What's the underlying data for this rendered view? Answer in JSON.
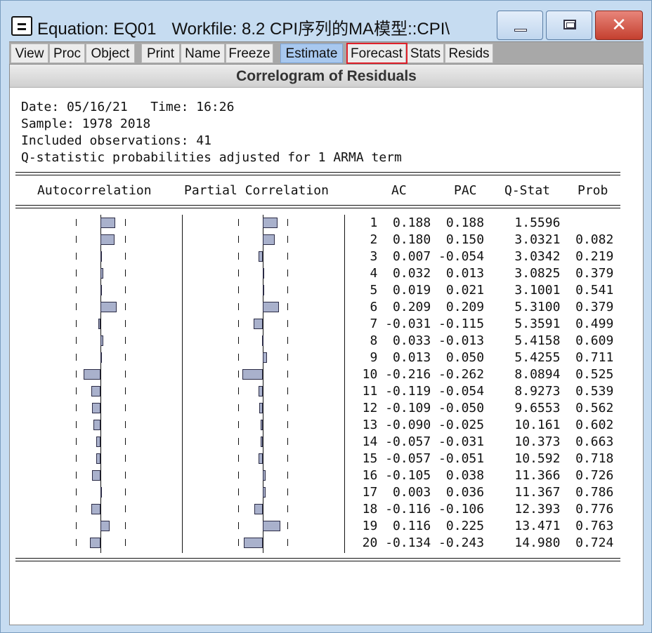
{
  "window": {
    "title_equation": "Equation: EQ01",
    "title_workfile": "Workfile: 8.2 CPI序列的MA模型::CPI\\",
    "controls": {
      "minimize": "minimize-icon",
      "maximize": "maximize-icon",
      "close": "close-icon"
    }
  },
  "toolbar": {
    "buttons": [
      "View",
      "Proc",
      "Object",
      "Print",
      "Name",
      "Freeze",
      "Estimate",
      "Forecast",
      "Stats",
      "Resids"
    ],
    "active_button": "Estimate",
    "highlighted_button": "Forecast",
    "highlight_color": "#e0202a"
  },
  "view": {
    "title": "Correlogram of Residuals",
    "date_line": "Date: 05/16/21   Time: 16:26",
    "sample_line": "Sample: 1978 2018",
    "obs_line": "Included observations: 41",
    "note_line": "Q-statistic probabilities adjusted for 1 ARMA term",
    "headers": {
      "autocorrelation": "Autocorrelation",
      "partial": "Partial Correlation",
      "ac": "AC",
      "pac": "PAC",
      "qstat": "Q-Stat",
      "prob": "Prob"
    },
    "bar_color": "#a9b1cc",
    "rows": [
      {
        "lag": "1",
        "ac": "0.188",
        "pac": "0.188",
        "q": "1.5596",
        "prob": ""
      },
      {
        "lag": "2",
        "ac": "0.180",
        "pac": "0.150",
        "q": "3.0321",
        "prob": "0.082"
      },
      {
        "lag": "3",
        "ac": "0.007",
        "pac": "-0.054",
        "q": "3.0342",
        "prob": "0.219"
      },
      {
        "lag": "4",
        "ac": "0.032",
        "pac": "0.013",
        "q": "3.0825",
        "prob": "0.379"
      },
      {
        "lag": "5",
        "ac": "0.019",
        "pac": "0.021",
        "q": "3.1001",
        "prob": "0.541"
      },
      {
        "lag": "6",
        "ac": "0.209",
        "pac": "0.209",
        "q": "5.3100",
        "prob": "0.379"
      },
      {
        "lag": "7",
        "ac": "-0.031",
        "pac": "-0.115",
        "q": "5.3591",
        "prob": "0.499"
      },
      {
        "lag": "8",
        "ac": "0.033",
        "pac": "-0.013",
        "q": "5.4158",
        "prob": "0.609"
      },
      {
        "lag": "9",
        "ac": "0.013",
        "pac": "0.050",
        "q": "5.4255",
        "prob": "0.711"
      },
      {
        "lag": "10",
        "ac": "-0.216",
        "pac": "-0.262",
        "q": "8.0894",
        "prob": "0.525"
      },
      {
        "lag": "11",
        "ac": "-0.119",
        "pac": "-0.054",
        "q": "8.9273",
        "prob": "0.539"
      },
      {
        "lag": "12",
        "ac": "-0.109",
        "pac": "-0.050",
        "q": "9.6553",
        "prob": "0.562"
      },
      {
        "lag": "13",
        "ac": "-0.090",
        "pac": "-0.025",
        "q": "10.161",
        "prob": "0.602"
      },
      {
        "lag": "14",
        "ac": "-0.057",
        "pac": "-0.031",
        "q": "10.373",
        "prob": "0.663"
      },
      {
        "lag": "15",
        "ac": "-0.057",
        "pac": "-0.051",
        "q": "10.592",
        "prob": "0.718"
      },
      {
        "lag": "16",
        "ac": "-0.105",
        "pac": "0.038",
        "q": "11.366",
        "prob": "0.726"
      },
      {
        "lag": "17",
        "ac": "0.003",
        "pac": "0.036",
        "q": "11.367",
        "prob": "0.786"
      },
      {
        "lag": "18",
        "ac": "-0.116",
        "pac": "-0.106",
        "q": "12.393",
        "prob": "0.776"
      },
      {
        "lag": "19",
        "ac": "0.116",
        "pac": "0.225",
        "q": "13.471",
        "prob": "0.763"
      },
      {
        "lag": "20",
        "ac": "-0.134",
        "pac": "-0.243",
        "q": "14.980",
        "prob": "0.724"
      }
    ]
  }
}
